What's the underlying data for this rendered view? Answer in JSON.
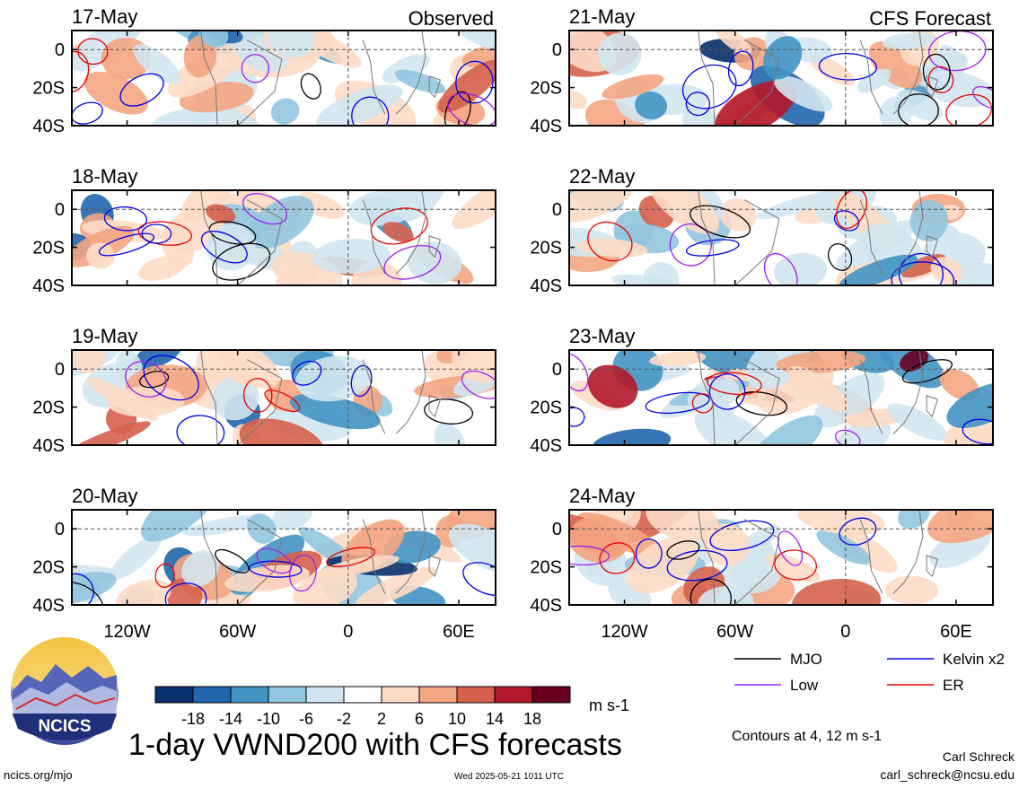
{
  "footer": {
    "title": "1-day VWND200 with CFS forecasts",
    "website": "ncics.org/mjo",
    "timestamp": "Wed 2025-05-21 1011 UTC",
    "author": "Carl Schreck",
    "email": "carl_schreck@ncsu.edu",
    "logo_text": "NCICS"
  },
  "panel_labels": {
    "observed": "Observed",
    "forecast": "CFS Forecast"
  },
  "chart_data": {
    "type": "heatmap",
    "variable": "VWND200",
    "units": "m s-1",
    "grid": false,
    "x_axis": {
      "range_deg": [
        -150,
        80
      ],
      "ticks": [
        {
          "value": -120,
          "label": "120W"
        },
        {
          "value": -60,
          "label": "60W"
        },
        {
          "value": 0,
          "label": "0"
        },
        {
          "value": 60,
          "label": "60E"
        }
      ]
    },
    "y_axis": {
      "range_deg": [
        -40,
        10
      ],
      "ticks": [
        {
          "value": 0,
          "label": "0"
        },
        {
          "value": -20,
          "label": "20S"
        },
        {
          "value": -40,
          "label": "40S"
        }
      ]
    },
    "panels": [
      {
        "date": "17-May",
        "source": "observed"
      },
      {
        "date": "18-May",
        "source": "observed"
      },
      {
        "date": "19-May",
        "source": "observed"
      },
      {
        "date": "20-May",
        "source": "observed"
      },
      {
        "date": "21-May",
        "source": "forecast"
      },
      {
        "date": "22-May",
        "source": "forecast"
      },
      {
        "date": "23-May",
        "source": "forecast"
      },
      {
        "date": "24-May",
        "source": "forecast"
      }
    ],
    "colorbar": {
      "labels": [
        "-18",
        "-14",
        "-10",
        "-6",
        "-2",
        "2",
        "6",
        "10",
        "14",
        "18"
      ],
      "colors": [
        "#08306b",
        "#2166ac",
        "#4393c3",
        "#92c5de",
        "#d1e5f0",
        "#ffffff",
        "#fddbc7",
        "#f4a582",
        "#d6604d",
        "#b2182b",
        "#67001f"
      ]
    },
    "legend": {
      "placement": "bottom-right",
      "items": [
        {
          "label": "MJO",
          "color": "#000000"
        },
        {
          "label": "Kelvin x2",
          "color": "#0000ee"
        },
        {
          "label": "Low",
          "color": "#a020f0"
        },
        {
          "label": "ER",
          "color": "#ee0000"
        }
      ],
      "note": "Contours at 4, 12 m s-1"
    }
  }
}
